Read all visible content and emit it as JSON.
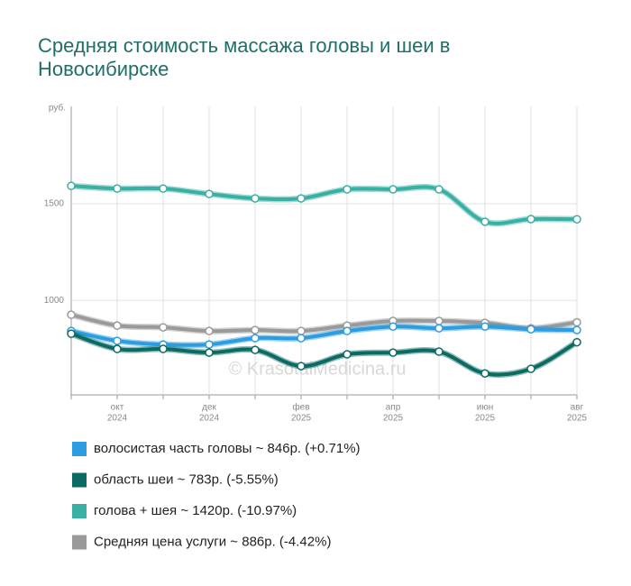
{
  "chart_data": {
    "type": "line",
    "title": "Средняя стоимость массажа головы и шеи в Новосибирске",
    "y_unit": "руб.",
    "watermark": "© KrasotaiMedicina.ru",
    "categories": [
      null,
      [
        "окт",
        "2024"
      ],
      null,
      [
        "дек",
        "2024"
      ],
      null,
      [
        "фев",
        "2025"
      ],
      null,
      [
        "апр",
        "2025"
      ],
      null,
      [
        "июн",
        "2025"
      ],
      null,
      [
        "авг",
        "2025"
      ]
    ],
    "ylim": [
      510,
      2005
    ],
    "yticks": [
      1000,
      1500
    ],
    "grid": true,
    "series": [
      {
        "name": "Средняя цена услуги ~ 886р. (-4.42%)",
        "color": "#9a9a9a",
        "values": [
          925,
          869,
          860,
          841,
          846,
          841,
          869,
          893,
          893,
          883,
          855,
          886
        ]
      },
      {
        "name": "волосистая часть головы ~ 846р. (+0.71%)",
        "color": "#2b9de0",
        "values": [
          841,
          790,
          771,
          771,
          804,
          804,
          841,
          864,
          855,
          864,
          850,
          846
        ]
      },
      {
        "name": "область шеи ~ 783р. (-5.55%)",
        "color": "#0b6b63",
        "values": [
          827,
          748,
          748,
          729,
          743,
          659,
          720,
          729,
          734,
          621,
          645,
          783
        ]
      },
      {
        "name": "голова + шея ~ 1420р. (-10.97%)",
        "color": "#3aafa4",
        "values": [
          1593,
          1579,
          1579,
          1551,
          1528,
          1528,
          1575,
          1575,
          1575,
          1407,
          1421,
          1420
        ]
      }
    ],
    "legend_order": [
      1,
      2,
      3,
      0
    ]
  }
}
